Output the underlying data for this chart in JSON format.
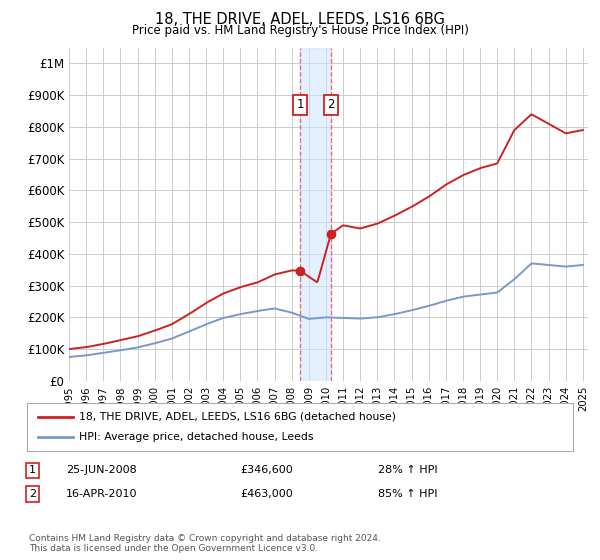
{
  "title": "18, THE DRIVE, ADEL, LEEDS, LS16 6BG",
  "subtitle": "Price paid vs. HM Land Registry's House Price Index (HPI)",
  "hpi_color": "#7799cc",
  "price_color": "#cc2222",
  "grid_color": "#cccccc",
  "background_color": "#ffffff",
  "legend_item1": "18, THE DRIVE, ADEL, LEEDS, LS16 6BG (detached house)",
  "legend_item2": "HPI: Average price, detached house, Leeds",
  "sale1_year": 2008.49,
  "sale1_price": 346600,
  "sale2_year": 2010.29,
  "sale2_price": 463000,
  "ann1_label": "1",
  "ann1_date": "25-JUN-2008",
  "ann1_price": "£346,600",
  "ann1_hpi": "28% ↑ HPI",
  "ann2_label": "2",
  "ann2_date": "16-APR-2010",
  "ann2_price": "£463,000",
  "ann2_hpi": "85% ↑ HPI",
  "footer": "Contains HM Land Registry data © Crown copyright and database right 2024.\nThis data is licensed under the Open Government Licence v3.0.",
  "yticks": [
    0,
    100000,
    200000,
    300000,
    400000,
    500000,
    600000,
    700000,
    800000,
    900000,
    1000000
  ],
  "ytick_labels": [
    "£0",
    "£100K",
    "£200K",
    "£300K",
    "£400K",
    "£500K",
    "£600K",
    "£700K",
    "£800K",
    "£900K",
    "£1M"
  ],
  "hpi_years": [
    1995,
    1996,
    1997,
    1998,
    1999,
    2000,
    2001,
    2002,
    2003,
    2004,
    2005,
    2006,
    2007,
    2008,
    2009,
    2010,
    2011,
    2012,
    2013,
    2014,
    2015,
    2016,
    2017,
    2018,
    2019,
    2020,
    2021,
    2022,
    2023,
    2024,
    2025
  ],
  "hpi_vals": [
    75000,
    80000,
    88000,
    96000,
    105000,
    118000,
    133000,
    155000,
    178000,
    198000,
    210000,
    220000,
    228000,
    215000,
    195000,
    200000,
    198000,
    196000,
    200000,
    210000,
    222000,
    236000,
    252000,
    265000,
    272000,
    278000,
    320000,
    370000,
    365000,
    360000,
    365000
  ],
  "price_years": [
    1995,
    1996,
    1997,
    1998,
    1999,
    2000,
    2001,
    2002,
    2003,
    2004,
    2005,
    2006,
    2007,
    2008.0,
    2008.49,
    2009.5,
    2010.29,
    2011,
    2012,
    2013,
    2014,
    2015,
    2016,
    2017,
    2018,
    2019,
    2020,
    2021,
    2022,
    2023,
    2024,
    2025
  ],
  "price_vals": [
    100000,
    106000,
    116000,
    128000,
    140000,
    158000,
    178000,
    210000,
    245000,
    275000,
    295000,
    310000,
    335000,
    348000,
    346600,
    310000,
    463000,
    490000,
    480000,
    495000,
    520000,
    548000,
    580000,
    618000,
    648000,
    670000,
    685000,
    790000,
    840000,
    810000,
    780000,
    790000
  ]
}
